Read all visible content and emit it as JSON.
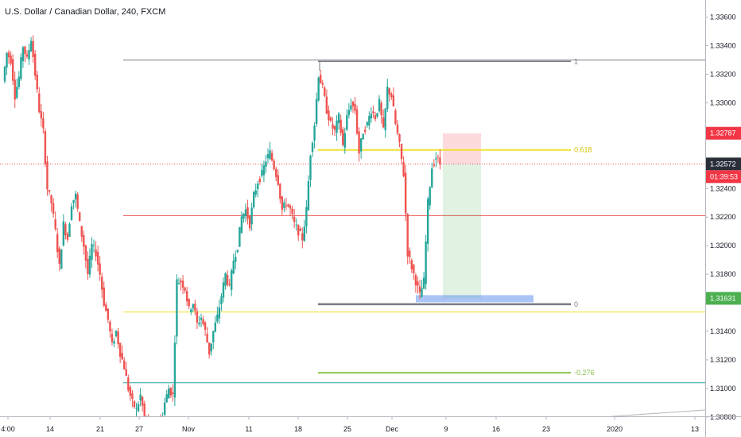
{
  "header": {
    "title": "U.S. Dollar / Canadian Dollar, 240, FXCM"
  },
  "chart_data": {
    "type": "candlestick",
    "symbol": "USDCAD",
    "title": "U.S. Dollar / Canadian Dollar, 240, FXCM",
    "ylim": [
      1.3066,
      1.3372
    ],
    "y_ticks": [
      "1.33600",
      "1.33400",
      "1.33200",
      "1.33000",
      "1.32400",
      "1.32200",
      "1.32000",
      "1.31800",
      "1.31400",
      "1.31200",
      "1.31000",
      "1.30800"
    ],
    "x_ticks": [
      "4:00",
      "14",
      "21",
      "27",
      "Nov",
      "11",
      "18",
      "25",
      "Dec",
      "9",
      "16",
      "23",
      "2020",
      "13"
    ],
    "price_labels": [
      {
        "value": 1.32787,
        "text": "1.32787",
        "color": "#f23645"
      },
      {
        "value": 1.32572,
        "text": "1.32572",
        "color": "#2a2e39",
        "countdown": "01:39:53",
        "countdown_color": "#f23645"
      },
      {
        "value": 1.31631,
        "text": "1.31631",
        "color": "#4caf50"
      }
    ],
    "fib_levels": [
      {
        "label": "1",
        "value": 1.3329,
        "color": "#787b86"
      },
      {
        "label": "0.618",
        "value": 1.3267,
        "color": "#f0e130"
      },
      {
        "label": "0",
        "value": 1.3159,
        "color": "#787b86"
      },
      {
        "label": "-0.276",
        "value": 1.3111,
        "color": "#8bc34a"
      }
    ],
    "horizontal_lines": [
      {
        "value": 1.333,
        "color": "#787b86"
      },
      {
        "value": 1.3221,
        "color": "#ef5350"
      },
      {
        "value": 1.31535,
        "color": "#f0e130"
      },
      {
        "value": 1.3104,
        "color": "#26a69a"
      },
      {
        "value": 1.32572,
        "color": "#ef5350",
        "dotted": true
      }
    ],
    "position": {
      "entry": 1.32572,
      "stop": 1.32787,
      "target": 1.31631
    },
    "up_color": "#26a69a",
    "down_color": "#ef5350",
    "path": [
      1.3315,
      1.3335,
      1.333,
      1.3305,
      1.3318,
      1.334,
      1.333,
      1.3345,
      1.332,
      1.3295,
      1.328,
      1.324,
      1.323,
      1.321,
      1.3185,
      1.3215,
      1.3205,
      1.323,
      1.3235,
      1.3215,
      1.32,
      1.318,
      1.32,
      1.3195,
      1.318,
      1.316,
      1.3148,
      1.313,
      1.314,
      1.3125,
      1.3115,
      1.31,
      1.309,
      1.3085,
      1.3095,
      1.308,
      1.3075,
      1.307,
      1.308,
      1.3075,
      1.309,
      1.31,
      1.3095,
      1.3175,
      1.3175,
      1.317,
      1.3155,
      1.316,
      1.3145,
      1.315,
      1.314,
      1.3125,
      1.314,
      1.315,
      1.3165,
      1.318,
      1.317,
      1.319,
      1.32,
      1.322,
      1.3225,
      1.3215,
      1.3235,
      1.3245,
      1.325,
      1.326,
      1.3265,
      1.3255,
      1.3245,
      1.3225,
      1.323,
      1.3225,
      1.3215,
      1.321,
      1.3205,
      1.3225,
      1.3265,
      1.3285,
      1.332,
      1.331,
      1.3295,
      1.3285,
      1.328,
      1.329,
      1.327,
      1.329,
      1.33,
      1.3295,
      1.3265,
      1.328,
      1.3285,
      1.3295,
      1.329,
      1.33,
      1.328,
      1.331,
      1.3305,
      1.3285,
      1.327,
      1.325,
      1.3195,
      1.3185,
      1.3175,
      1.3165,
      1.3175,
      1.323,
      1.3255,
      1.3262,
      1.32572
    ]
  }
}
